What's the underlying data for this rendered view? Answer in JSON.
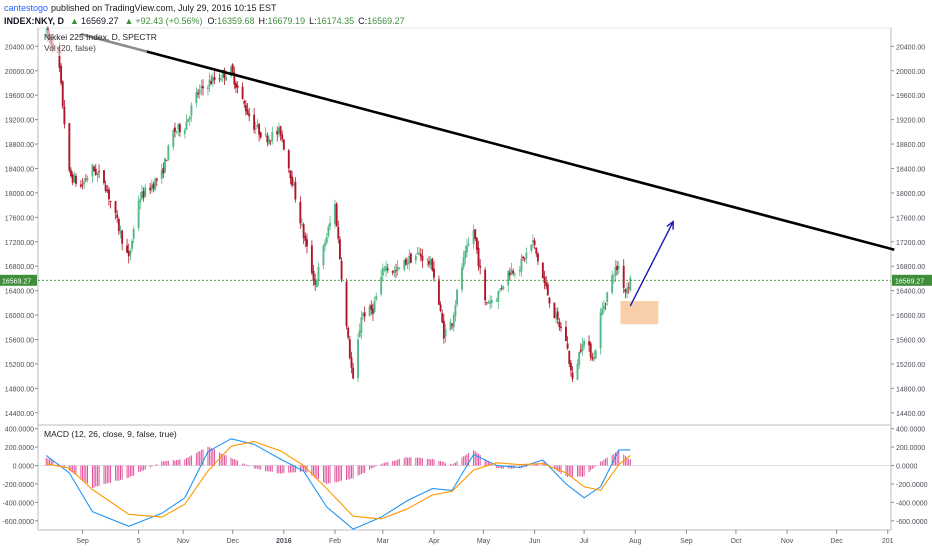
{
  "header": {
    "author": "cantestogo",
    "published": "published on TradingView.com, July 29, 2016 10:15 EST",
    "symbol": "INDEX:NKY, D",
    "last": "16569.27",
    "change": "+92.43 (+0.56%)",
    "ohlc": {
      "o_label": "O:",
      "o": "16359.68",
      "h_label": "H:",
      "h": "16679.19",
      "l_label": "L:",
      "l": "16174.35",
      "c_label": "C:",
      "c": "16569.27"
    }
  },
  "chart_data": [
    {
      "type": "candlestick",
      "title": "Nikkei 225 Index, D, SPECTR",
      "volume_label": "Vol (20, false)",
      "ylim": [
        14200,
        20700
      ],
      "y_ticks": [
        "20400.00",
        "20000.00",
        "19600.00",
        "19200.00",
        "18800.00",
        "18400.00",
        "18000.00",
        "17600.00",
        "17200.00",
        "16800.00",
        "16400.00",
        "16000.00",
        "15600.00",
        "15200.00",
        "14800.00",
        "14400.00"
      ],
      "x_ticks": [
        "Sep",
        "5",
        "Nov",
        "Dec",
        "2016",
        "Feb",
        "Mar",
        "Apr",
        "May",
        "Jun",
        "Jul",
        "Aug",
        "Sep",
        "Oct",
        "Nov",
        "Dec",
        "201"
      ],
      "last_price": 16569.27,
      "last_price_label": "16569.27",
      "colors": {
        "up": "#53b987",
        "down": "#b0162a",
        "last": "#3f8f3a",
        "trend": "#000000",
        "arrow": "#1a1ab4",
        "box": "#f7c79a"
      },
      "keypoints": [
        [
          "2015-08-10",
          20600
        ],
        [
          "2015-08-17",
          20300
        ],
        [
          "2015-08-24",
          18300
        ],
        [
          "2015-08-31",
          18100
        ],
        [
          "2015-09-07",
          18400
        ],
        [
          "2015-09-14",
          18200
        ],
        [
          "2015-09-21",
          17600
        ],
        [
          "2015-09-29",
          16900
        ],
        [
          "2015-10-05",
          17900
        ],
        [
          "2015-10-12",
          18100
        ],
        [
          "2015-10-19",
          18300
        ],
        [
          "2015-10-26",
          19000
        ],
        [
          "2015-11-02",
          19100
        ],
        [
          "2015-11-09",
          19600
        ],
        [
          "2015-11-16",
          19800
        ],
        [
          "2015-11-23",
          19900
        ],
        [
          "2015-11-30",
          20000
        ],
        [
          "2015-12-07",
          19500
        ],
        [
          "2015-12-14",
          19100
        ],
        [
          "2015-12-21",
          18900
        ],
        [
          "2015-12-30",
          19000
        ],
        [
          "2016-01-06",
          18200
        ],
        [
          "2016-01-13",
          17300
        ],
        [
          "2016-01-20",
          16500
        ],
        [
          "2016-01-26",
          17200
        ],
        [
          "2016-02-01",
          17800
        ],
        [
          "2016-02-08",
          15800
        ],
        [
          "2016-02-12",
          14900
        ],
        [
          "2016-02-17",
          16000
        ],
        [
          "2016-02-24",
          16100
        ],
        [
          "2016-03-02",
          16800
        ],
        [
          "2016-03-09",
          16700
        ],
        [
          "2016-03-16",
          16900
        ],
        [
          "2016-03-23",
          17000
        ],
        [
          "2016-03-31",
          16800
        ],
        [
          "2016-04-07",
          15700
        ],
        [
          "2016-04-12",
          15900
        ],
        [
          "2016-04-18",
          16800
        ],
        [
          "2016-04-25",
          17400
        ],
        [
          "2016-05-02",
          16200
        ],
        [
          "2016-05-09",
          16300
        ],
        [
          "2016-05-16",
          16700
        ],
        [
          "2016-05-23",
          16800
        ],
        [
          "2016-05-31",
          17200
        ],
        [
          "2016-06-06",
          16600
        ],
        [
          "2016-06-13",
          16000
        ],
        [
          "2016-06-20",
          15600
        ],
        [
          "2016-06-24",
          14900
        ],
        [
          "2016-06-30",
          15600
        ],
        [
          "2016-07-07",
          15300
        ],
        [
          "2016-07-11",
          16000
        ],
        [
          "2016-07-19",
          16700
        ],
        [
          "2016-07-22",
          16800
        ],
        [
          "2016-07-26",
          16400
        ],
        [
          "2016-07-29",
          16569.27
        ]
      ],
      "trend_line": {
        "from": [
          "2015-08-31",
          20600
        ],
        "to": [
          "2017-01-05",
          17070
        ]
      },
      "projection_arrow": {
        "from": [
          "2016-07-29",
          16150
        ],
        "to": [
          "2016-08-24",
          17530
        ]
      },
      "highlight_box": {
        "from": [
          "2016-07-23",
          15850
        ],
        "to": [
          "2016-08-15",
          16230
        ]
      }
    },
    {
      "type": "line",
      "title": "MACD (12, 26, close, 9, false, true)",
      "ylim": [
        -700,
        440
      ],
      "y_ticks": [
        "400.0000",
        "200.0000",
        "0.0000",
        "-200.0000",
        "-400.0000",
        "-600.0000"
      ],
      "series": [
        {
          "color": "#2196f3",
          "values": [
            [
              "2015-08-10",
              110
            ],
            [
              "2015-08-24",
              -80
            ],
            [
              "2015-09-07",
              -500
            ],
            [
              "2015-09-29",
              -660
            ],
            [
              "2015-10-19",
              -520
            ],
            [
              "2015-11-02",
              -350
            ],
            [
              "2015-11-16",
              150
            ],
            [
              "2015-11-30",
              290
            ],
            [
              "2015-12-14",
              230
            ],
            [
              "2015-12-30",
              70
            ],
            [
              "2016-01-13",
              -60
            ],
            [
              "2016-01-27",
              -450
            ],
            [
              "2016-02-12",
              -690
            ],
            [
              "2016-02-29",
              -560
            ],
            [
              "2016-03-16",
              -380
            ],
            [
              "2016-03-31",
              -250
            ],
            [
              "2016-04-12",
              -270
            ],
            [
              "2016-04-25",
              120
            ],
            [
              "2016-05-09",
              0
            ],
            [
              "2016-05-23",
              -20
            ],
            [
              "2016-06-06",
              60
            ],
            [
              "2016-06-20",
              -200
            ],
            [
              "2016-07-01",
              -350
            ],
            [
              "2016-07-11",
              -230
            ],
            [
              "2016-07-22",
              170
            ],
            [
              "2016-07-29",
              170
            ]
          ]
        },
        {
          "color": "#ff9800",
          "values": [
            [
              "2015-08-10",
              20
            ],
            [
              "2015-08-24",
              -30
            ],
            [
              "2015-09-07",
              -260
            ],
            [
              "2015-09-29",
              -530
            ],
            [
              "2015-10-19",
              -560
            ],
            [
              "2015-11-02",
              -420
            ],
            [
              "2015-11-16",
              -60
            ],
            [
              "2015-11-30",
              210
            ],
            [
              "2015-12-14",
              260
            ],
            [
              "2015-12-30",
              160
            ],
            [
              "2016-01-13",
              0
            ],
            [
              "2016-01-27",
              -250
            ],
            [
              "2016-02-12",
              -550
            ],
            [
              "2016-02-29",
              -580
            ],
            [
              "2016-03-16",
              -470
            ],
            [
              "2016-03-31",
              -320
            ],
            [
              "2016-04-12",
              -280
            ],
            [
              "2016-04-25",
              -50
            ],
            [
              "2016-05-09",
              30
            ],
            [
              "2016-05-23",
              10
            ],
            [
              "2016-06-06",
              20
            ],
            [
              "2016-06-20",
              -80
            ],
            [
              "2016-07-01",
              -230
            ],
            [
              "2016-07-11",
              -270
            ],
            [
              "2016-07-22",
              10
            ],
            [
              "2016-07-29",
              110
            ]
          ]
        }
      ]
    }
  ]
}
